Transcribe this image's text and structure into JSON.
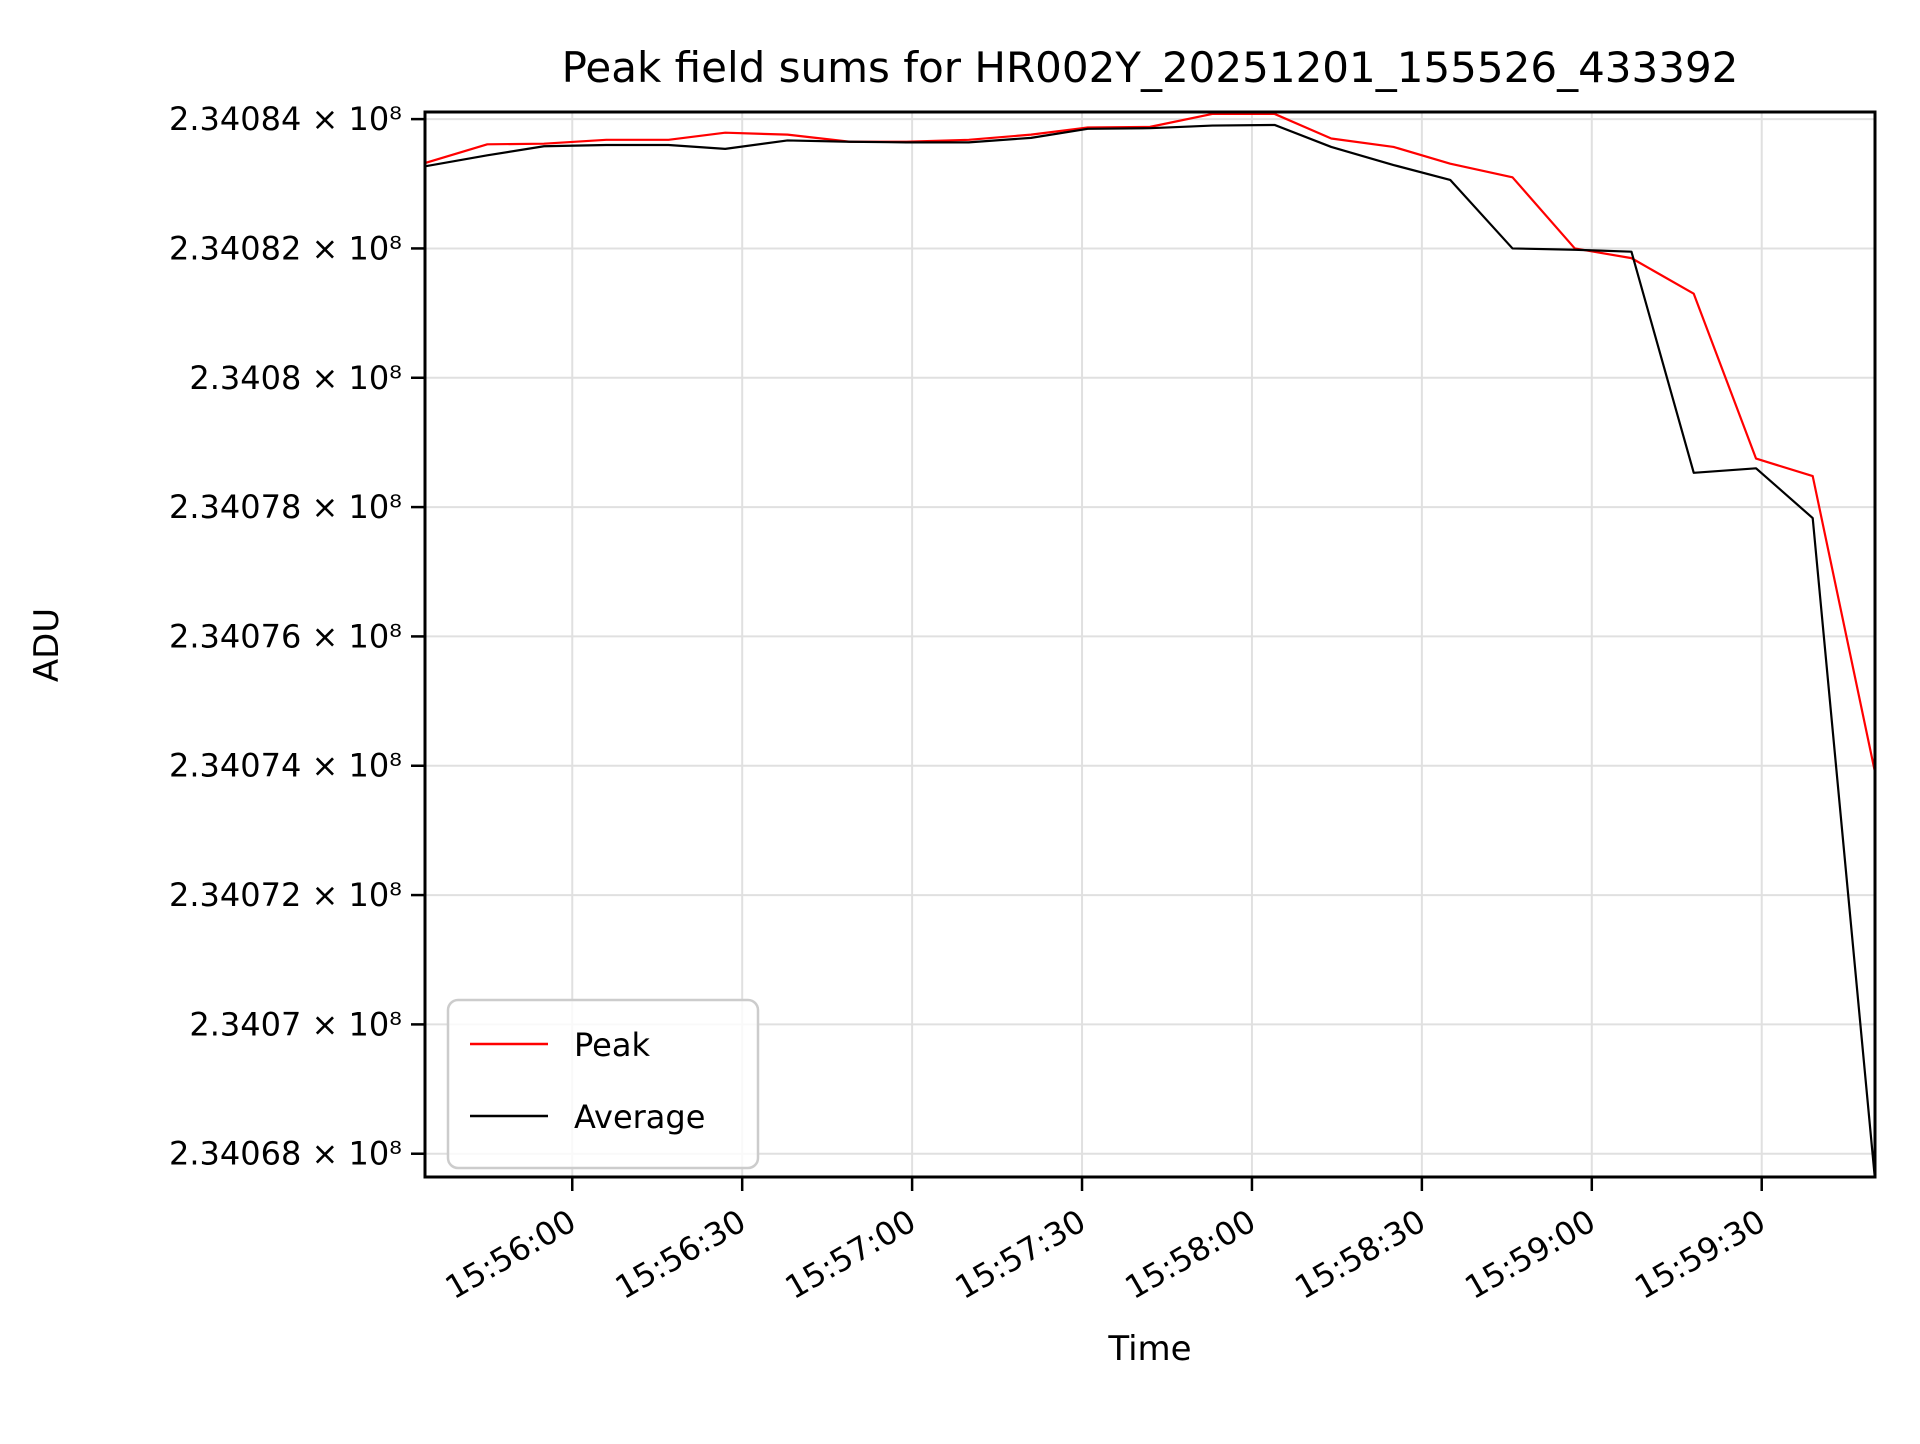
{
  "title": "Peak field sums for HR002Y_20251201_155526_433392",
  "chart_data": {
    "type": "line",
    "title": "Peak field sums for HR002Y_20251201_155526_433392",
    "xlabel": "Time",
    "ylabel": "ADU",
    "grid": true,
    "grid_color": "#e0e0e0",
    "legend_position": "lower left",
    "xlim": [
      "15:55:34",
      "15:59:50"
    ],
    "ylim": [
      234067640,
      234084110
    ],
    "x_ticks": [
      {
        "label": "15:56:00"
      },
      {
        "label": "15:56:30"
      },
      {
        "label": "15:57:00"
      },
      {
        "label": "15:57:30"
      },
      {
        "label": "15:58:00"
      },
      {
        "label": "15:58:30"
      },
      {
        "label": "15:59:00"
      },
      {
        "label": "15:59:30"
      }
    ],
    "y_ticks": [
      {
        "value": 234084000,
        "label": "2.34084 × 10⁸"
      },
      {
        "value": 234082000,
        "label": "2.34082 × 10⁸"
      },
      {
        "value": 234080000,
        "label": "2.3408 × 10⁸"
      },
      {
        "value": 234078000,
        "label": "2.34078 × 10⁸"
      },
      {
        "value": 234076000,
        "label": "2.34076 × 10⁸"
      },
      {
        "value": 234074000,
        "label": "2.34074 × 10⁸"
      },
      {
        "value": 234072000,
        "label": "2.34072 × 10⁸"
      },
      {
        "value": 234070000,
        "label": "2.3407 × 10⁸"
      },
      {
        "value": 234068000,
        "label": "2.34068 × 10⁸"
      }
    ],
    "x": [
      "15:55:34",
      "15:55:45",
      "15:55:55",
      "15:56:06",
      "15:56:17",
      "15:56:27",
      "15:56:38",
      "15:56:49",
      "15:56:59",
      "15:57:10",
      "15:57:21",
      "15:57:31",
      "15:57:42",
      "15:57:53",
      "15:58:04",
      "15:58:14",
      "15:58:25",
      "15:58:35",
      "15:58:46",
      "15:58:57",
      "15:59:07",
      "15:59:18",
      "15:59:29",
      "15:59:39",
      "15:59:50"
    ],
    "series": [
      {
        "name": "Peak",
        "color": "#ff0000",
        "values": [
          234083320,
          234083610,
          234083620,
          234083680,
          234083680,
          234083790,
          234083760,
          234083650,
          234083650,
          234083680,
          234083760,
          234083870,
          234083880,
          234084080,
          234084080,
          234083700,
          234083570,
          234083310,
          234083100,
          234082000,
          234081850,
          234081300,
          234078750,
          234078480,
          234073900
        ]
      },
      {
        "name": "Average",
        "color": "#000000",
        "values": [
          234083270,
          234083440,
          234083580,
          234083600,
          234083600,
          234083540,
          234083670,
          234083650,
          234083640,
          234083640,
          234083710,
          234083850,
          234083860,
          234083900,
          234083910,
          234083570,
          234083290,
          234083060,
          234082000,
          234081980,
          234081950,
          234078530,
          234078600,
          234077830,
          234067600
        ]
      }
    ]
  }
}
